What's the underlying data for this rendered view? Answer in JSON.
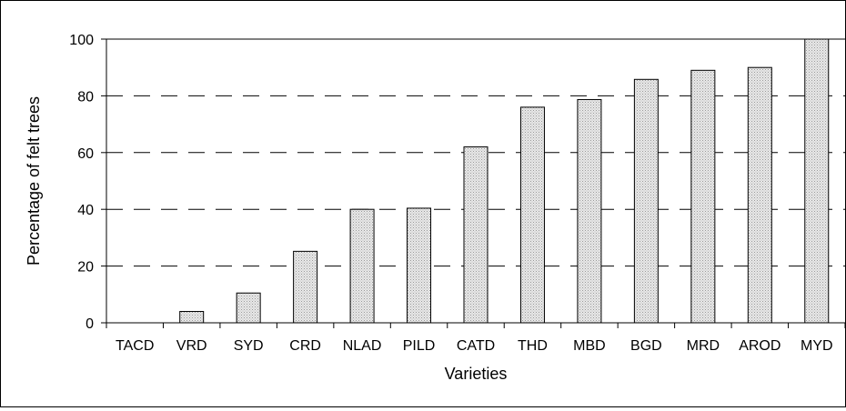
{
  "chart_data": {
    "type": "bar",
    "title": "",
    "xlabel": "Varieties",
    "ylabel": "Percentage of felt trees",
    "ylim": [
      0,
      100
    ],
    "yticks": [
      0,
      20,
      40,
      60,
      80,
      100
    ],
    "grid": "horizontal dashed",
    "legend": "none",
    "bar_fill": "#d9d9d9",
    "categories": [
      "TACD",
      "VRD",
      "SYD",
      "CRD",
      "NLAD",
      "PILD",
      "CATD",
      "THD",
      "MBD",
      "BGD",
      "MRD",
      "AROD",
      "MYD"
    ],
    "values": [
      0,
      4,
      10.5,
      25.2,
      40,
      40.4,
      62,
      76,
      78.7,
      85.8,
      89,
      90,
      100
    ]
  }
}
